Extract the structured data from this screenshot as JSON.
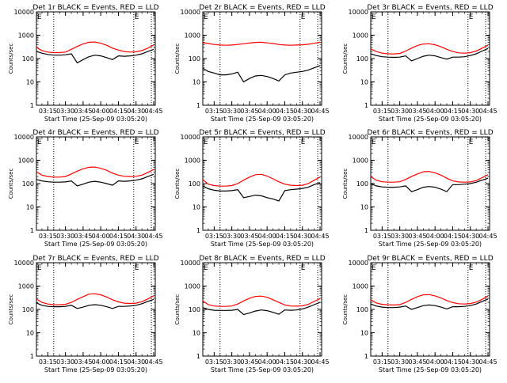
{
  "chart_data": [
    {
      "type": "line",
      "title": "Det 1r BLACK = Events, RED = LLD",
      "xlabel": "Start Time (25-Sep-09 03:05:20)",
      "ylabel": "Counts/sec",
      "scale_y": "log",
      "ylim": [
        1,
        10000
      ],
      "xlim": [
        "03:05:20",
        "04:46:20"
      ],
      "x_tick_labels": [
        "03:15",
        "03:30",
        "03:45",
        "04:00",
        "04:15",
        "04:30",
        "04:45"
      ],
      "y_tick_labels": [
        "1",
        "10",
        "100",
        "1000",
        "10000"
      ],
      "vlines": [
        "03:20:00",
        "04:28:00",
        "04:43:00"
      ],
      "marker": "E",
      "x": [
        "03:05",
        "03:10",
        "03:15",
        "03:20",
        "03:25",
        "03:30",
        "03:35",
        "03:40",
        "03:45",
        "03:50",
        "03:55",
        "04:00",
        "04:05",
        "04:10",
        "04:15",
        "04:20",
        "04:25",
        "04:30",
        "04:35",
        "04:40",
        "04:45"
      ],
      "series": [
        {
          "color": "#000000",
          "values": [
            200,
            170,
            150,
            140,
            140,
            145,
            160,
            65,
            90,
            120,
            140,
            130,
            110,
            90,
            130,
            125,
            130,
            140,
            160,
            200,
            250
          ]
        },
        {
          "color": "#ff0000",
          "values": [
            300,
            220,
            190,
            180,
            180,
            190,
            250,
            330,
            420,
            500,
            510,
            450,
            370,
            280,
            230,
            200,
            190,
            195,
            220,
            280,
            380
          ]
        }
      ]
    },
    {
      "type": "line",
      "title": "Det 2r BLACK = Events, RED = LLD",
      "xlabel": "Start Time (25-Sep-09 03:05:20)",
      "ylabel": "Counts/sec",
      "scale_y": "log",
      "ylim": [
        1,
        10000
      ],
      "xlim": [
        "03:05:20",
        "04:46:20"
      ],
      "x_tick_labels": [
        "03:15",
        "03:30",
        "03:45",
        "04:00",
        "04:15",
        "04:30",
        "04:45"
      ],
      "y_tick_labels": [
        "1",
        "10",
        "100",
        "1000",
        "10000"
      ],
      "vlines": [
        "03:20:00",
        "04:28:00",
        "04:43:00"
      ],
      "marker": "E",
      "x": [
        "03:05",
        "03:10",
        "03:15",
        "03:20",
        "03:25",
        "03:30",
        "03:35",
        "03:40",
        "03:45",
        "03:50",
        "03:55",
        "04:00",
        "04:05",
        "04:10",
        "04:15",
        "04:20",
        "04:25",
        "04:30",
        "04:35",
        "04:40",
        "04:45"
      ],
      "series": [
        {
          "color": "#000000",
          "values": [
            38,
            28,
            24,
            20,
            20,
            22,
            26,
            10,
            14,
            18,
            19,
            17,
            14,
            11,
            20,
            24,
            26,
            28,
            32,
            40,
            50
          ]
        },
        {
          "color": "#ff0000",
          "values": [
            480,
            440,
            400,
            380,
            370,
            380,
            400,
            430,
            460,
            490,
            500,
            470,
            440,
            400,
            380,
            370,
            380,
            390,
            410,
            450,
            500
          ]
        }
      ]
    },
    {
      "type": "line",
      "title": "Det 3r BLACK = Events, RED = LLD",
      "xlabel": "Start Time (25-Sep-09 03:05:20)",
      "ylabel": "Counts/sec",
      "scale_y": "log",
      "ylim": [
        1,
        10000
      ],
      "xlim": [
        "03:05:20",
        "04:46:20"
      ],
      "x_tick_labels": [
        "03:15",
        "03:30",
        "03:45",
        "04:00",
        "04:15",
        "04:30",
        "04:45"
      ],
      "y_tick_labels": [
        "1",
        "10",
        "100",
        "1000",
        "10000"
      ],
      "vlines": [
        "03:20:00",
        "04:28:00",
        "04:43:00"
      ],
      "marker": "E",
      "x": [
        "03:05",
        "03:10",
        "03:15",
        "03:20",
        "03:25",
        "03:30",
        "03:35",
        "03:40",
        "03:45",
        "03:50",
        "03:55",
        "04:00",
        "04:05",
        "04:10",
        "04:15",
        "04:20",
        "04:25",
        "04:30",
        "04:35",
        "04:40",
        "04:45"
      ],
      "series": [
        {
          "color": "#000000",
          "values": [
            160,
            135,
            120,
            115,
            112,
            115,
            130,
            80,
            100,
            125,
            140,
            130,
            110,
            95,
            115,
            115,
            120,
            135,
            160,
            210,
            270
          ]
        },
        {
          "color": "#ff0000",
          "values": [
            260,
            200,
            170,
            160,
            158,
            165,
            210,
            280,
            360,
            420,
            430,
            390,
            320,
            250,
            200,
            175,
            170,
            180,
            210,
            280,
            370
          ]
        }
      ]
    },
    {
      "type": "line",
      "title": "Det 4r BLACK = Events, RED = LLD",
      "xlabel": "Start Time (25-Sep-09 03:05:20)",
      "ylabel": "Counts/sec",
      "scale_y": "log",
      "ylim": [
        1,
        10000
      ],
      "xlim": [
        "03:05:20",
        "04:46:20"
      ],
      "x_tick_labels": [
        "03:15",
        "03:30",
        "03:45",
        "04:00",
        "04:15",
        "04:30",
        "04:45"
      ],
      "y_tick_labels": [
        "1",
        "10",
        "100",
        "1000",
        "10000"
      ],
      "vlines": [
        "03:20:00",
        "04:28:00",
        "04:43:00"
      ],
      "marker": "E",
      "x": [
        "03:05",
        "03:10",
        "03:15",
        "03:20",
        "03:25",
        "03:30",
        "03:35",
        "03:40",
        "03:45",
        "03:50",
        "03:55",
        "04:00",
        "04:05",
        "04:10",
        "04:15",
        "04:20",
        "04:25",
        "04:30",
        "04:35",
        "04:40",
        "04:45"
      ],
      "series": [
        {
          "color": "#000000",
          "values": [
            150,
            130,
            120,
            115,
            115,
            118,
            130,
            80,
            95,
            115,
            125,
            115,
            100,
            85,
            130,
            125,
            130,
            140,
            160,
            200,
            250
          ]
        },
        {
          "color": "#ff0000",
          "values": [
            320,
            230,
            200,
            190,
            190,
            200,
            260,
            340,
            430,
            500,
            510,
            450,
            370,
            280,
            230,
            205,
            200,
            205,
            230,
            300,
            400
          ]
        }
      ]
    },
    {
      "type": "line",
      "title": "Det 5r BLACK = Events, RED = LLD",
      "xlabel": "Start Time (25-Sep-09 03:05:20)",
      "ylabel": "Counts/sec",
      "scale_y": "log",
      "ylim": [
        1,
        10000
      ],
      "xlim": [
        "03:05:20",
        "04:46:20"
      ],
      "x_tick_labels": [
        "03:15",
        "03:30",
        "03:45",
        "04:00",
        "04:15",
        "04:30",
        "04:45"
      ],
      "y_tick_labels": [
        "1",
        "10",
        "100",
        "1000",
        "10000"
      ],
      "vlines": [
        "03:20:00",
        "04:28:00",
        "04:43:00"
      ],
      "marker": "E",
      "x": [
        "03:05",
        "03:10",
        "03:15",
        "03:20",
        "03:25",
        "03:30",
        "03:35",
        "03:40",
        "03:45",
        "03:50",
        "03:55",
        "04:00",
        "04:05",
        "04:10",
        "04:15",
        "04:20",
        "04:25",
        "04:30",
        "04:35",
        "04:40",
        "04:45"
      ],
      "series": [
        {
          "color": "#000000",
          "values": [
            80,
            60,
            52,
            48,
            48,
            50,
            55,
            25,
            28,
            32,
            30,
            25,
            22,
            18,
            50,
            55,
            58,
            62,
            70,
            90,
            110
          ]
        },
        {
          "color": "#ff0000",
          "values": [
            150,
            95,
            82,
            78,
            78,
            82,
            100,
            140,
            190,
            240,
            250,
            210,
            160,
            120,
            95,
            85,
            82,
            85,
            100,
            140,
            190
          ]
        }
      ]
    },
    {
      "type": "line",
      "title": "Det 6r BLACK = Events, RED = LLD",
      "xlabel": "Start Time (25-Sep-09 03:05:20)",
      "ylabel": "Counts/sec",
      "scale_y": "log",
      "ylim": [
        1,
        10000
      ],
      "xlim": [
        "03:05:20",
        "04:46:20"
      ],
      "x_tick_labels": [
        "03:15",
        "03:30",
        "03:45",
        "04:00",
        "04:15",
        "04:30",
        "04:45"
      ],
      "y_tick_labels": [
        "1",
        "10",
        "100",
        "1000",
        "10000"
      ],
      "vlines": [
        "03:20:00",
        "04:28:00",
        "04:43:00"
      ],
      "marker": "E",
      "x": [
        "03:05",
        "03:10",
        "03:15",
        "03:20",
        "03:25",
        "03:30",
        "03:35",
        "03:40",
        "03:45",
        "03:50",
        "03:55",
        "04:00",
        "04:05",
        "04:10",
        "04:15",
        "04:20",
        "04:25",
        "04:30",
        "04:35",
        "04:40",
        "04:45"
      ],
      "series": [
        {
          "color": "#000000",
          "values": [
            100,
            80,
            72,
            70,
            70,
            72,
            80,
            45,
            55,
            70,
            75,
            70,
            58,
            45,
            90,
            90,
            95,
            100,
            115,
            140,
            170
          ]
        },
        {
          "color": "#ff0000",
          "values": [
            200,
            140,
            120,
            115,
            115,
            120,
            150,
            200,
            260,
            320,
            330,
            290,
            230,
            170,
            130,
            118,
            115,
            118,
            135,
            180,
            240
          ]
        }
      ]
    },
    {
      "type": "line",
      "title": "Det 7r BLACK = Events, RED = LLD",
      "xlabel": "Start Time (25-Sep-09 03:05:20)",
      "ylabel": "Counts/sec",
      "scale_y": "log",
      "ylim": [
        1,
        10000
      ],
      "xlim": [
        "03:05:20",
        "04:46:20"
      ],
      "x_tick_labels": [
        "03:15",
        "03:30",
        "03:45",
        "04:00",
        "04:15",
        "04:30",
        "04:45"
      ],
      "y_tick_labels": [
        "1",
        "10",
        "100",
        "1000",
        "10000"
      ],
      "vlines": [
        "03:20:00",
        "04:28:00",
        "04:43:00"
      ],
      "marker": "E",
      "x": [
        "03:05",
        "03:10",
        "03:15",
        "03:20",
        "03:25",
        "03:30",
        "03:35",
        "03:40",
        "03:45",
        "03:50",
        "03:55",
        "04:00",
        "04:05",
        "04:10",
        "04:15",
        "04:20",
        "04:25",
        "04:30",
        "04:35",
        "04:40",
        "04:45"
      ],
      "series": [
        {
          "color": "#000000",
          "values": [
            190,
            150,
            135,
            130,
            130,
            135,
            150,
            110,
            125,
            150,
            160,
            150,
            130,
            110,
            135,
            135,
            140,
            150,
            175,
            220,
            270
          ]
        },
        {
          "color": "#ff0000",
          "values": [
            280,
            200,
            170,
            160,
            158,
            165,
            200,
            270,
            350,
            450,
            470,
            420,
            340,
            260,
            210,
            185,
            180,
            185,
            215,
            280,
            380
          ]
        }
      ]
    },
    {
      "type": "line",
      "title": "Det 8r BLACK = Events, RED = LLD",
      "xlabel": "Start Time (25-Sep-09 03:05:20)",
      "ylabel": "Counts/sec",
      "scale_y": "log",
      "ylim": [
        1,
        10000
      ],
      "xlim": [
        "03:05:20",
        "04:46:20"
      ],
      "x_tick_labels": [
        "03:15",
        "03:30",
        "03:45",
        "04:00",
        "04:15",
        "04:30",
        "04:45"
      ],
      "y_tick_labels": [
        "1",
        "10",
        "100",
        "1000",
        "10000"
      ],
      "vlines": [
        "03:20:00",
        "04:28:00",
        "04:43:00"
      ],
      "marker": "E",
      "x": [
        "03:05",
        "03:10",
        "03:15",
        "03:20",
        "03:25",
        "03:30",
        "03:35",
        "03:40",
        "03:45",
        "03:50",
        "03:55",
        "04:00",
        "04:05",
        "04:10",
        "04:15",
        "04:20",
        "04:25",
        "04:30",
        "04:35",
        "04:40",
        "04:45"
      ],
      "series": [
        {
          "color": "#000000",
          "values": [
            120,
            100,
            92,
            90,
            90,
            92,
            100,
            60,
            70,
            85,
            95,
            88,
            75,
            62,
            95,
            92,
            95,
            105,
            125,
            160,
            200
          ]
        },
        {
          "color": "#ff0000",
          "values": [
            230,
            160,
            140,
            135,
            135,
            140,
            170,
            230,
            300,
            360,
            370,
            330,
            260,
            200,
            155,
            140,
            138,
            142,
            165,
            220,
            290
          ]
        }
      ]
    },
    {
      "type": "line",
      "title": "Det 9r BLACK = Events, RED = LLD",
      "xlabel": "Start Time (25-Sep-09 03:05:20)",
      "ylabel": "Counts/sec",
      "scale_y": "log",
      "ylim": [
        1,
        10000
      ],
      "xlim": [
        "03:05:20",
        "04:46:20"
      ],
      "x_tick_labels": [
        "03:15",
        "03:30",
        "03:45",
        "04:00",
        "04:15",
        "04:30",
        "04:45"
      ],
      "y_tick_labels": [
        "1",
        "10",
        "100",
        "1000",
        "10000"
      ],
      "vlines": [
        "03:20:00",
        "04:28:00",
        "04:43:00"
      ],
      "marker": "E",
      "x": [
        "03:05",
        "03:10",
        "03:15",
        "03:20",
        "03:25",
        "03:30",
        "03:35",
        "03:40",
        "03:45",
        "03:50",
        "03:55",
        "04:00",
        "04:05",
        "04:10",
        "04:15",
        "04:20",
        "04:25",
        "04:30",
        "04:35",
        "04:40",
        "04:45"
      ],
      "series": [
        {
          "color": "#000000",
          "values": [
            170,
            140,
            125,
            120,
            120,
            125,
            140,
            100,
            120,
            145,
            155,
            145,
            125,
            105,
            130,
            130,
            135,
            145,
            170,
            220,
            280
          ]
        },
        {
          "color": "#ff0000",
          "values": [
            260,
            190,
            165,
            158,
            155,
            160,
            200,
            270,
            350,
            420,
            430,
            380,
            310,
            240,
            195,
            175,
            170,
            178,
            205,
            270,
            370
          ]
        }
      ]
    }
  ]
}
